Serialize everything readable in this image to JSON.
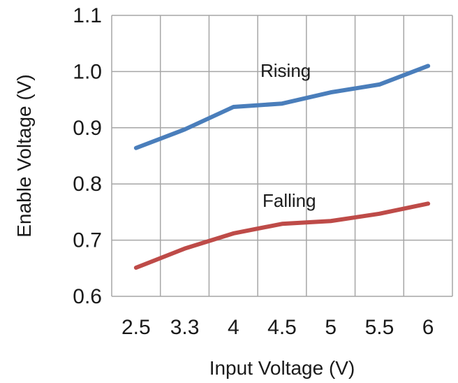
{
  "chart_data": {
    "type": "line",
    "title": "",
    "xlabel": "Input Voltage (V)",
    "ylabel": "Enable Voltage (V)",
    "categories": [
      "2.5",
      "3.3",
      "4",
      "4.5",
      "5",
      "5.5",
      "6"
    ],
    "ylim": [
      0.6,
      1.1
    ],
    "yticks": [
      "0.6",
      "0.7",
      "0.8",
      "0.9",
      "1.0",
      "1.1"
    ],
    "grid": true,
    "legend": "inline labels",
    "series": [
      {
        "name": "Rising",
        "color": "#4a7ebb",
        "values": [
          0.864,
          0.897,
          0.937,
          0.943,
          0.963,
          0.977,
          1.01
        ]
      },
      {
        "name": "Falling",
        "color": "#be4b48",
        "values": [
          0.651,
          0.685,
          0.712,
          0.729,
          0.734,
          0.747,
          0.765
        ]
      }
    ]
  }
}
